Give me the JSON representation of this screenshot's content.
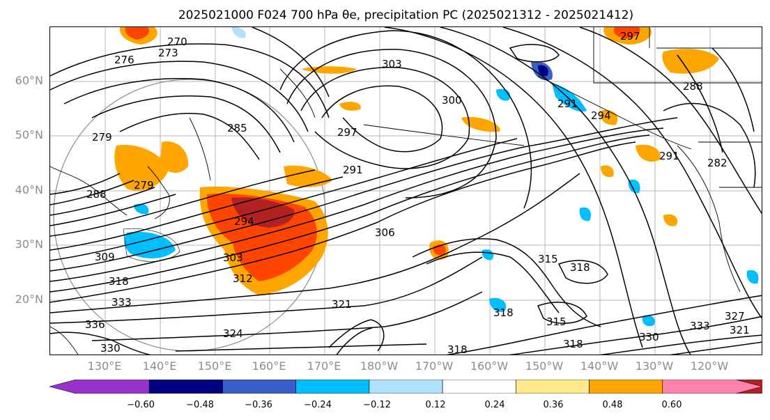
{
  "title": "2025021000 F024 700 hPa θe, precipitation PC (2025021312 - 2025021412)",
  "latitude_labels": [
    "60°N",
    "50°N",
    "40°N",
    "30°N",
    "20°N"
  ],
  "longitude_labels": [
    "130°E",
    "140°E",
    "150°E",
    "160°E",
    "170°E",
    "180°W",
    "170°W",
    "160°W",
    "150°W",
    "140°W",
    "130°W",
    "120°W"
  ],
  "contour_labels": [
    "270",
    "273",
    "276",
    "279",
    "285",
    "288",
    "291",
    "294",
    "297",
    "300",
    "303",
    "306",
    "309",
    "312",
    "315",
    "318",
    "321",
    "324",
    "327",
    "330",
    "333",
    "336",
    "282"
  ],
  "colorbar": {
    "ticks": [
      "−0.60",
      "−0.48",
      "−0.36",
      "−0.24",
      "−0.12",
      "0.12",
      "0.24",
      "0.36",
      "0.48",
      "0.60"
    ],
    "colors": [
      "#9932cc",
      "#000080",
      "#3a5fcd",
      "#00bfff",
      "#b0e2ff",
      "#ffffff",
      "#ffe98a",
      "#ffa500",
      "#ff4500",
      "#b22222",
      "#ff82ab"
    ]
  }
}
